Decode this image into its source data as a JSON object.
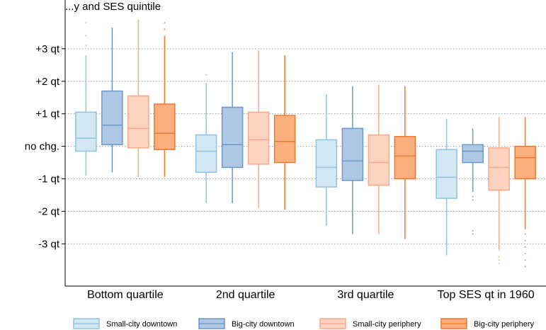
{
  "chart_data": {
    "type": "boxplot",
    "title": "...y and SES quintile",
    "y_tick_labels": [
      "+3 qt",
      "+2 qt",
      "+1 qt",
      "no chg.",
      "-1 qt",
      "-2 qt",
      "-3 qt"
    ],
    "y_tick_values": [
      3,
      2,
      1,
      0,
      -1,
      -2,
      -3
    ],
    "ylim": [
      -4.3,
      4.5
    ],
    "grid": true,
    "legend_position": "bottom",
    "categories": [
      "Bottom quartile",
      "2nd quartile",
      "3rd quartile",
      "Top SES qt in 1960"
    ],
    "series": [
      {
        "name": "Small-city downtown",
        "fill": "#d4e8f4",
        "stroke": "#8fc3e0",
        "boxes": [
          {
            "whislo": -0.9,
            "q1": -0.15,
            "med": 0.25,
            "q3": 1.05,
            "whishi": 2.8,
            "out_hi": [
              3.1,
              3.4,
              3.8
            ]
          },
          {
            "whislo": -1.75,
            "q1": -0.8,
            "med": -0.15,
            "q3": 0.35,
            "whishi": 1.95,
            "out_hi": [
              2.2
            ]
          },
          {
            "whislo": -2.45,
            "q1": -1.25,
            "med": -0.65,
            "q3": 0.2,
            "whishi": 1.6
          },
          {
            "whislo": -3.35,
            "q1": -1.6,
            "med": -0.95,
            "q3": -0.1,
            "whishi": 0.85
          }
        ]
      },
      {
        "name": "Big-city downtown",
        "fill": "#aec8e3",
        "stroke": "#6b96c8",
        "boxes": [
          {
            "whislo": -0.8,
            "q1": 0.05,
            "med": 0.65,
            "q3": 1.7,
            "whishi": 3.65
          },
          {
            "whislo": -1.75,
            "q1": -0.65,
            "med": 0.05,
            "q3": 1.2,
            "whishi": 2.9
          },
          {
            "whislo": -2.7,
            "q1": -1.05,
            "med": -0.45,
            "q3": 0.55,
            "whishi": 1.85
          },
          {
            "whislo": -1.4,
            "q1": -0.5,
            "med": -0.15,
            "q3": 0.05,
            "whishi": 0.55,
            "out_lo": [
              -1.55,
              -1.65,
              -2.6,
              -2.7
            ]
          }
        ]
      },
      {
        "name": "Small-city periphery",
        "fill": "#fcd3bf",
        "stroke": "#f7a98a",
        "boxes": [
          {
            "whislo": -0.95,
            "q1": -0.05,
            "med": 0.55,
            "q3": 1.55,
            "whishi": 3.9
          },
          {
            "whislo": -1.9,
            "q1": -0.55,
            "med": 0.2,
            "q3": 1.05,
            "whishi": 2.95
          },
          {
            "whislo": -2.7,
            "q1": -1.2,
            "med": -0.5,
            "q3": 0.35,
            "whishi": 1.9
          },
          {
            "whislo": -3.2,
            "q1": -1.35,
            "med": -0.65,
            "q3": -0.05,
            "whishi": 0.9,
            "out_lo": [
              -3.4,
              -3.5,
              -3.6
            ]
          }
        ]
      },
      {
        "name": "Big-city periphery",
        "fill": "#fbae7e",
        "stroke": "#ef7a2e",
        "boxes": [
          {
            "whislo": -0.95,
            "q1": -0.1,
            "med": 0.4,
            "q3": 1.3,
            "whishi": 3.4,
            "out_hi": [
              3.6,
              3.8
            ]
          },
          {
            "whislo": -1.95,
            "q1": -0.5,
            "med": 0.15,
            "q3": 0.95,
            "whishi": 2.8
          },
          {
            "whislo": -2.85,
            "q1": -1.0,
            "med": -0.3,
            "q3": 0.3,
            "whishi": 1.85
          },
          {
            "whislo": -2.55,
            "q1": -1.0,
            "med": -0.35,
            "q3": 0.0,
            "whishi": 0.9,
            "out_lo": [
              -2.7,
              -2.9,
              -3.1,
              -3.3,
              -3.5,
              -3.7
            ]
          }
        ]
      }
    ]
  }
}
